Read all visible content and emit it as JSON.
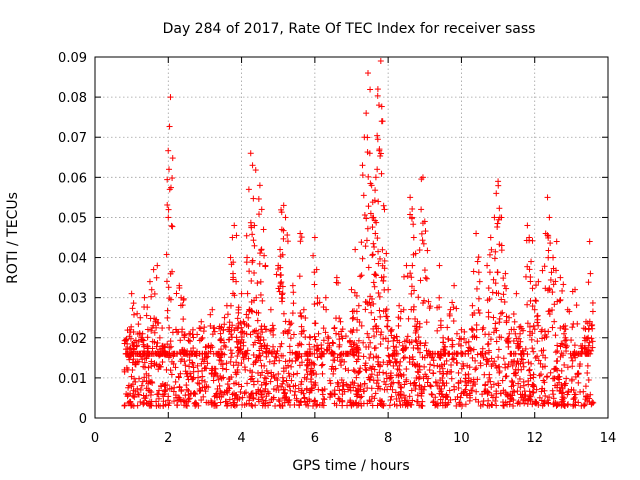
{
  "chart_data": {
    "type": "scatter",
    "title": "Day 284 of 2017, Rate Of TEC Index for receiver sass",
    "xlabel": "GPS time / hours",
    "ylabel": "ROTI / TECUs",
    "xlim": [
      0,
      14
    ],
    "ylim": [
      0,
      0.09
    ],
    "x_ticks": [
      0,
      2,
      4,
      6,
      8,
      10,
      12,
      14
    ],
    "x_tick_labels": [
      "0",
      "2",
      "4",
      "6",
      "8",
      "10",
      "12",
      "14"
    ],
    "y_ticks": [
      0,
      0.01,
      0.02,
      0.03,
      0.04,
      0.05,
      0.06,
      0.07,
      0.08,
      0.09
    ],
    "y_tick_labels": [
      "0",
      "0.01",
      "0.02",
      "0.03",
      "0.04",
      "0.05",
      "0.06",
      "0.07",
      "0.08",
      "0.09"
    ],
    "grid": true,
    "marker": "+",
    "marker_color": "#ff0000",
    "series": [
      {
        "name": "ROTI",
        "points": [
          [
            0.85,
            0.006
          ],
          [
            0.9,
            0.012
          ],
          [
            0.95,
            0.022
          ],
          [
            1.0,
            0.031
          ],
          [
            1.05,
            0.018
          ],
          [
            1.1,
            0.009
          ],
          [
            1.15,
            0.026
          ],
          [
            1.2,
            0.014
          ],
          [
            1.25,
            0.007
          ],
          [
            1.3,
            0.021
          ],
          [
            1.35,
            0.03
          ],
          [
            1.4,
            0.011
          ],
          [
            1.45,
            0.016
          ],
          [
            1.5,
            0.034
          ],
          [
            1.55,
            0.009
          ],
          [
            1.6,
            0.037
          ],
          [
            1.65,
            0.024
          ],
          [
            1.7,
            0.038
          ],
          [
            1.75,
            0.013
          ],
          [
            1.8,
            0.008
          ],
          [
            1.85,
            0.018
          ],
          [
            1.9,
            0.006
          ],
          [
            1.95,
            0.012
          ],
          [
            2.0,
            0.05
          ],
          [
            2.02,
            0.062
          ],
          [
            2.04,
            0.057
          ],
          [
            2.06,
            0.08
          ],
          [
            2.1,
            0.014
          ],
          [
            2.2,
            0.009
          ],
          [
            2.3,
            0.033
          ],
          [
            2.35,
            0.03
          ],
          [
            2.4,
            0.017
          ],
          [
            2.5,
            0.011
          ],
          [
            2.6,
            0.021
          ],
          [
            2.7,
            0.006
          ],
          [
            2.8,
            0.013
          ],
          [
            2.9,
            0.024
          ],
          [
            3.0,
            0.009
          ],
          [
            3.1,
            0.018
          ],
          [
            3.2,
            0.027
          ],
          [
            3.3,
            0.011
          ],
          [
            3.4,
            0.008
          ],
          [
            3.5,
            0.022
          ],
          [
            3.6,
            0.028
          ],
          [
            3.7,
            0.04
          ],
          [
            3.75,
            0.045
          ],
          [
            3.8,
            0.048
          ],
          [
            3.85,
            0.034
          ],
          [
            3.9,
            0.019
          ],
          [
            4.0,
            0.031
          ],
          [
            4.05,
            0.024
          ],
          [
            4.1,
            0.012
          ],
          [
            4.15,
            0.04
          ],
          [
            4.2,
            0.057
          ],
          [
            4.25,
            0.066
          ],
          [
            4.3,
            0.063
          ],
          [
            4.35,
            0.048
          ],
          [
            4.4,
            0.03
          ],
          [
            4.45,
            0.021
          ],
          [
            4.5,
            0.058
          ],
          [
            4.55,
            0.052
          ],
          [
            4.6,
            0.047
          ],
          [
            4.65,
            0.038
          ],
          [
            4.7,
            0.018
          ],
          [
            4.8,
            0.027
          ],
          [
            4.9,
            0.01
          ],
          [
            5.0,
            0.038
          ],
          [
            5.05,
            0.042
          ],
          [
            5.1,
            0.047
          ],
          [
            5.15,
            0.053
          ],
          [
            5.2,
            0.05
          ],
          [
            5.3,
            0.024
          ],
          [
            5.4,
            0.033
          ],
          [
            5.5,
            0.015
          ],
          [
            5.6,
            0.046
          ],
          [
            5.7,
            0.027
          ],
          [
            5.8,
            0.013
          ],
          [
            5.9,
            0.009
          ],
          [
            6.0,
            0.045
          ],
          [
            6.05,
            0.037
          ],
          [
            6.1,
            0.021
          ],
          [
            6.2,
            0.007
          ],
          [
            6.3,
            0.03
          ],
          [
            6.4,
            0.018
          ],
          [
            6.5,
            0.011
          ],
          [
            6.6,
            0.035
          ],
          [
            6.7,
            0.024
          ],
          [
            6.8,
            0.014
          ],
          [
            6.9,
            0.008
          ],
          [
            7.0,
            0.032
          ],
          [
            7.05,
            0.025
          ],
          [
            7.1,
            0.042
          ],
          [
            7.15,
            0.018
          ],
          [
            7.2,
            0.028
          ],
          [
            7.3,
            0.063
          ],
          [
            7.35,
            0.07
          ],
          [
            7.4,
            0.076
          ],
          [
            7.45,
            0.086
          ],
          [
            7.5,
            0.066
          ],
          [
            7.55,
            0.058
          ],
          [
            7.6,
            0.05
          ],
          [
            7.65,
            0.046
          ],
          [
            7.7,
            0.062
          ],
          [
            7.72,
            0.082
          ],
          [
            7.75,
            0.078
          ],
          [
            7.8,
            0.089
          ],
          [
            7.85,
            0.074
          ],
          [
            7.9,
            0.052
          ],
          [
            7.95,
            0.041
          ],
          [
            8.0,
            0.032
          ],
          [
            8.1,
            0.022
          ],
          [
            8.2,
            0.014
          ],
          [
            8.3,
            0.028
          ],
          [
            8.4,
            0.018
          ],
          [
            8.5,
            0.038
          ],
          [
            8.6,
            0.055
          ],
          [
            8.65,
            0.05
          ],
          [
            8.7,
            0.045
          ],
          [
            8.75,
            0.041
          ],
          [
            8.8,
            0.024
          ],
          [
            8.9,
            0.052
          ],
          [
            8.95,
            0.06
          ],
          [
            9.0,
            0.049
          ],
          [
            9.1,
            0.029
          ],
          [
            9.2,
            0.015
          ],
          [
            9.3,
            0.009
          ],
          [
            9.4,
            0.038
          ],
          [
            9.5,
            0.02
          ],
          [
            9.6,
            0.011
          ],
          [
            9.7,
            0.027
          ],
          [
            9.8,
            0.033
          ],
          [
            9.9,
            0.016
          ],
          [
            10.0,
            0.022
          ],
          [
            10.1,
            0.009
          ],
          [
            10.2,
            0.019
          ],
          [
            10.3,
            0.028
          ],
          [
            10.4,
            0.046
          ],
          [
            10.5,
            0.034
          ],
          [
            10.6,
            0.015
          ],
          [
            10.7,
            0.038
          ],
          [
            10.8,
            0.045
          ],
          [
            10.9,
            0.05
          ],
          [
            10.95,
            0.056
          ],
          [
            11.0,
            0.059
          ],
          [
            11.05,
            0.05
          ],
          [
            11.1,
            0.043
          ],
          [
            11.2,
            0.036
          ],
          [
            11.3,
            0.025
          ],
          [
            11.4,
            0.013
          ],
          [
            11.5,
            0.031
          ],
          [
            11.6,
            0.021
          ],
          [
            11.7,
            0.009
          ],
          [
            11.8,
            0.048
          ],
          [
            11.85,
            0.045
          ],
          [
            11.9,
            0.039
          ],
          [
            12.0,
            0.027
          ],
          [
            12.1,
            0.034
          ],
          [
            12.2,
            0.022
          ],
          [
            12.3,
            0.046
          ],
          [
            12.35,
            0.055
          ],
          [
            12.4,
            0.05
          ],
          [
            12.5,
            0.04
          ],
          [
            12.6,
            0.044
          ],
          [
            12.7,
            0.035
          ],
          [
            12.8,
            0.021
          ],
          [
            12.9,
            0.027
          ],
          [
            13.0,
            0.015
          ],
          [
            13.1,
            0.032
          ],
          [
            13.2,
            0.011
          ],
          [
            13.3,
            0.018
          ],
          [
            13.4,
            0.024
          ],
          [
            13.45,
            0.013
          ],
          [
            13.5,
            0.044
          ],
          [
            13.52,
            0.036
          ],
          [
            13.55,
            0.023
          ]
        ],
        "baseline_band": [
          0.003,
          0.016
        ],
        "baseline_note": "dense cluster of samples between 0.003 and 0.016 TECUs across 0.8–13.6 h"
      }
    ]
  }
}
